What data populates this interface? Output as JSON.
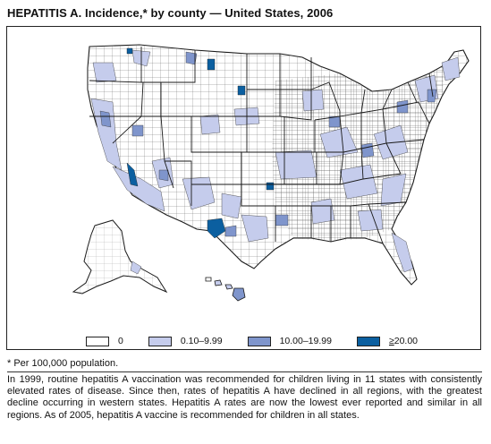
{
  "title": "HEPATITIS A. Incidence,* by county — United States, 2006",
  "legend": [
    {
      "label": "0",
      "color": "#ffffff"
    },
    {
      "label": "0.10–9.99",
      "color": "#c5ccec"
    },
    {
      "label": "10.00–19.99",
      "color": "#7f95cc"
    },
    {
      "label_prefix": "≥",
      "label": "20.00",
      "color": "#0b5fa0"
    }
  ],
  "footnote": "* Per 100,000 population.",
  "note": "In 1999, routine hepatitis A vaccination was recommended for children living in 11 states with consistently elevated rates of disease. Since then, rates of hepatitis A have declined in all regions, with the greatest decline occurring in western states. Hepatitis A rates are now the lowest ever reported and similar in all regions. As of 2005, hepatitis A vaccine is recommended for children in all states.",
  "colors": {
    "outline": "#1a1a1a",
    "county_grid": "#555555",
    "zero": "#ffffff",
    "low": "#c5ccec",
    "mid": "#7f95cc",
    "high": "#0b5fa0"
  }
}
